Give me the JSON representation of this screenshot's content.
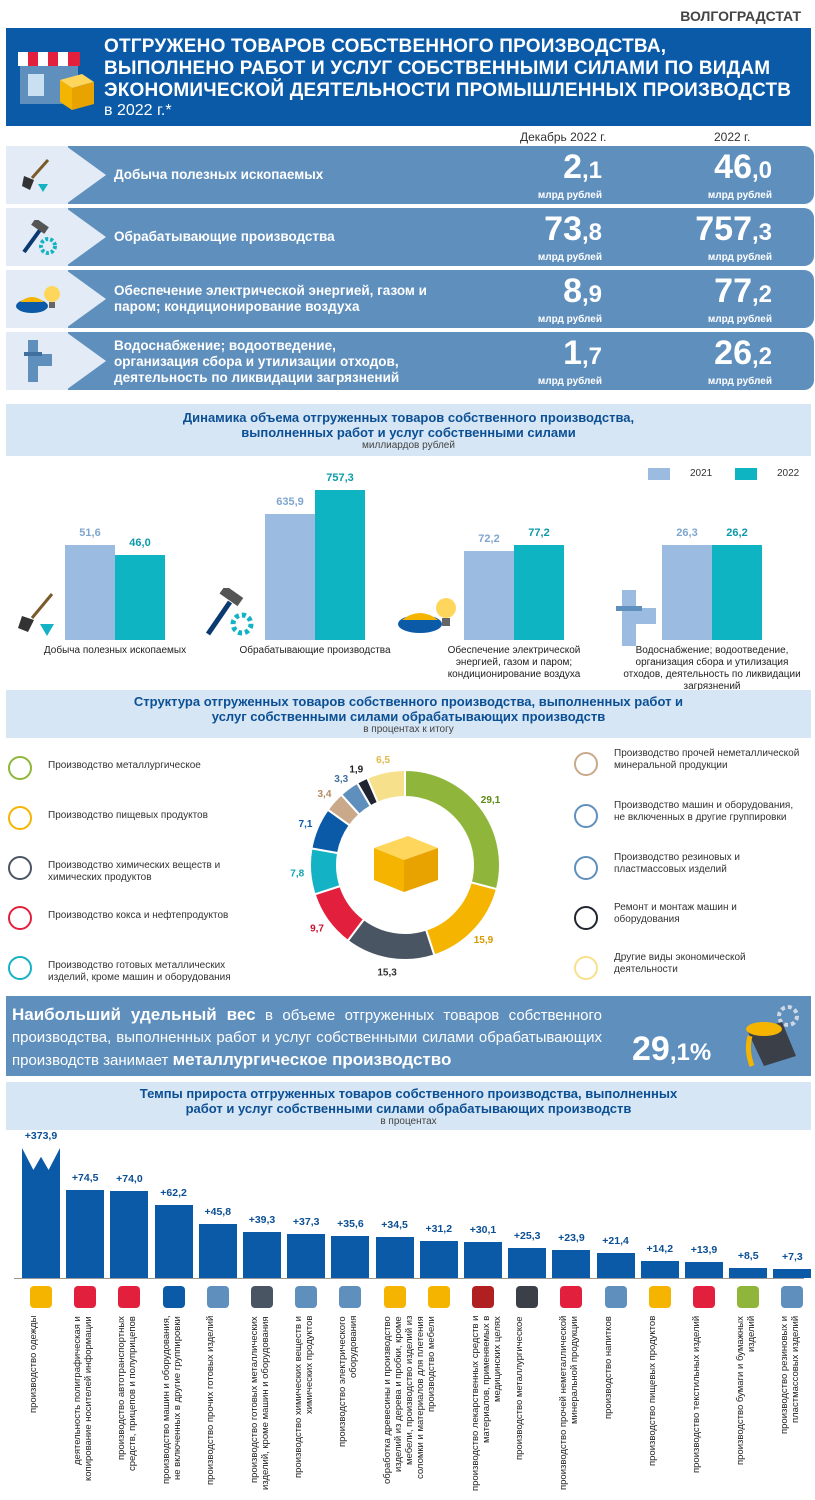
{
  "agency": "ВОЛГОГРАДСТАТ",
  "header": {
    "title_lines": [
      "ОТГРУЖЕНО ТОВАРОВ СОБСТВЕННОГО ПРОИЗВОДСТВА,",
      "ВЫПОЛНЕНО РАБОТ И УСЛУГ СОБСТВЕННЫМИ СИЛАМИ ПО ВИДАМ",
      "ЭКОНОМИЧЕСКОЙ ДЕЯТЕЛЬНОСТИ ПРОМЫШЛЕННЫХ ПРОИЗВОДСТВ"
    ],
    "year_note": "в 2022 г.*"
  },
  "columns": {
    "dec": "Декабрь 2022 г.",
    "year": "2022 г."
  },
  "unit": "млрд рублей",
  "rows": [
    {
      "label": "Добыча полезных ископаемых",
      "dec_int": "2",
      "dec_frac": ",1",
      "year_int": "46",
      "year_frac": ",0",
      "icon": "shovel-diamond-icon"
    },
    {
      "label": "Обрабатывающие производства",
      "dec_int": "73",
      "dec_frac": ",8",
      "year_int": "757",
      "year_frac": ",3",
      "icon": "hammer-gear-icon"
    },
    {
      "label": "Обеспечение электрической энергией, газом и паром; кондиционирование воздуха",
      "dec_int": "8",
      "dec_frac": ",9",
      "year_int": "77",
      "year_frac": ",2",
      "icon": "bulb-burner-icon"
    },
    {
      "label": "Водоснабжение; водоотведение, организация сбора и утилизации отходов, деятельность по ликвидации загрязнений",
      "dec_int": "1",
      "dec_frac": ",7",
      "year_int": "26",
      "year_frac": ",2",
      "icon": "pipe-icon"
    }
  ],
  "dynamics": {
    "title": "Динамика объема отгруженных товаров собственного производства, выполненных работ и услуг собственными силами",
    "subtitle": "миллиардов рублей"
  },
  "structure": {
    "title": "Структура отгруженных товаров собственного производства, выполненных работ и услуг собственными силами обрабатывающих производств",
    "subtitle": "в процентах к итогу",
    "left_legend": [
      {
        "label": "Производство металлургическое",
        "icon": "metal-bucket-icon"
      },
      {
        "label": "Производство пищевых продуктов",
        "icon": "icecream-icon"
      },
      {
        "label": "Производство химических веществ и химических продуктов",
        "icon": "flask-icon"
      },
      {
        "label": "Производство кокса и нефтепродуктов",
        "icon": "oil-icon"
      },
      {
        "label": "Производство готовых металлических изделий, кроме машин и оборудования",
        "icon": "gear-tools-icon"
      }
    ],
    "right_legend": [
      {
        "label": "Производство прочей неметаллической минеральной продукции",
        "icon": "plate-icon"
      },
      {
        "label": "Производство машин и оборудования, не включенных в другие группировки",
        "icon": "robot-arm-icon"
      },
      {
        "label": "Производство резиновых и пластмассовых изделий",
        "icon": "boots-icon"
      },
      {
        "label": "Ремонт и монтаж машин и оборудования",
        "icon": "wrench-icon"
      },
      {
        "label": "Другие виды экономической деятельности",
        "icon": "other-icon"
      }
    ]
  },
  "callout": {
    "bold": "Наибольший удельный вес",
    "text1": " в объеме отгруженных товаров собственного производства, выполненных работ и услуг собственными силами обрабатывающих производств занимает ",
    "bold2": "металлургическое производство",
    "value_int": "29",
    "value_frac": ",1%"
  },
  "growth": {
    "title": "Темпы прироста отгруженных товаров собственного производства, выполненных работ и услуг собственными силами обрабатывающих производств",
    "subtitle": "в процентах"
  },
  "colors": {
    "y2021": "#9bbce0",
    "y2022": "#0fb4c3",
    "dark": "#0b5aa8"
  },
  "chart_data": [
    {
      "type": "bar",
      "categories": [
        "Добыча полезных ископаемых",
        "Обрабатывающие производства",
        "Обеспечение электрической энергией, газом и паром; кондиционирование воздуха",
        "Водоснабжение; водоотведение, организация сбора и утилизация отходов, деятельность по ликвидации загрязнений"
      ],
      "series": [
        {
          "name": "2021",
          "values": [
            51.6,
            635.9,
            72.2,
            26.3
          ],
          "labels": [
            "51,6",
            "635,9",
            "72,2",
            "26,3"
          ]
        },
        {
          "name": "2022",
          "values": [
            46.0,
            757.3,
            77.2,
            26.2
          ],
          "labels": [
            "46,0",
            "757,3",
            "77,2",
            "26,2"
          ]
        }
      ]
    },
    {
      "type": "pie",
      "values": [
        29.1,
        15.9,
        15.3,
        9.7,
        7.8,
        7.1,
        3.4,
        3.3,
        1.9,
        6.5
      ],
      "labels": [
        "29,1",
        "15,9",
        "15,3",
        "9,7",
        "7,8",
        "7,1",
        "3,4",
        "3,3",
        "1,9",
        "6,5"
      ],
      "colors": [
        "#8fb63a",
        "#f5b400",
        "#4a5563",
        "#e2203d",
        "#13b2c4",
        "#0b5aa8",
        "#c9a98a",
        "#5f8fbd",
        "#1f2430",
        "#f7e08c"
      ]
    },
    {
      "type": "bar",
      "categories": [
        "производство одежды",
        "деятельность полиграфическая и копирование носителей информации",
        "производство автотранспортных средств, прицепов и полуприцепов",
        "производство машин и оборудования, не включенных в другие группировки",
        "производство прочих готовых изделий",
        "производство готовых металлических изделий, кроме машин и оборудования",
        "производство химических веществ и химических продуктов",
        "производство электрического оборудования",
        "обработка древесины и производство изделий из дерева и пробки, кроме мебели, производство изделий из соломки и материалов для плетения",
        "производство мебели",
        "производство лекарственных средств и материалов, применяемых в медицинских целях",
        "производство металлургическое",
        "производство прочей неметаллической минеральной продукции",
        "производство напитков",
        "производство пищевых продуктов",
        "производство текстильных изделий",
        "производство бумаги и бумажных изделий",
        "производство резиновых и пластмассовых изделий"
      ],
      "values": [
        373.9,
        74.5,
        74.0,
        62.2,
        45.8,
        39.3,
        37.3,
        35.6,
        34.5,
        31.2,
        30.1,
        25.3,
        23.9,
        21.4,
        14.2,
        13.9,
        8.5,
        7.3
      ],
      "labels": [
        "+373,9",
        "+74,5",
        "+74,0",
        "+62,2",
        "+45,8",
        "+39,3",
        "+37,3",
        "+35,6",
        "+34,5",
        "+31,2",
        "+30,1",
        "+25,3",
        "+23,9",
        "+21,4",
        "+14,2",
        "+13,9",
        "+8,5",
        "+7,3"
      ],
      "axis_break": true
    }
  ]
}
